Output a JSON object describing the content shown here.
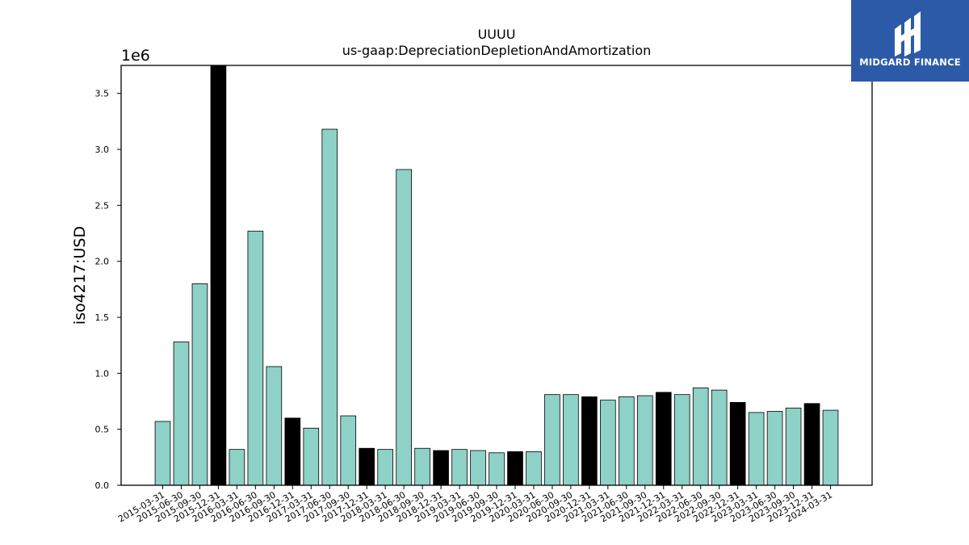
{
  "chart_data": {
    "type": "bar",
    "title": "UUUU",
    "subtitle": "us-gaap:DepreciationDepletionAndAmortization",
    "ylabel": "iso4217:USD",
    "xlabel": "",
    "y_scale_label": "1e6",
    "ylim": [
      0,
      3.75
    ],
    "y_ticks": [
      "0.0",
      "0.5",
      "1.0",
      "1.5",
      "2.0",
      "2.5",
      "3.0",
      "3.5"
    ],
    "y_tick_values": [
      0,
      0.5,
      1.0,
      1.5,
      2.0,
      2.5,
      3.0,
      3.5
    ],
    "colors": {
      "quarter": "#8ed1c6",
      "year_end": "#000000",
      "edge": "#000000"
    },
    "categories": [
      "2015-03-31",
      "2015-06-30",
      "2015-09-30",
      "2015-12-31",
      "2016-03-31",
      "2016-06-30",
      "2016-09-30",
      "2016-12-31",
      "2017-03-31",
      "2017-06-30",
      "2017-09-30",
      "2017-12-31",
      "2018-03-31",
      "2018-06-30",
      "2018-09-30",
      "2018-12-31",
      "2019-03-31",
      "2019-06-30",
      "2019-09-30",
      "2019-12-31",
      "2020-03-31",
      "2020-06-30",
      "2020-09-30",
      "2020-12-31",
      "2021-03-31",
      "2021-06-30",
      "2021-09-30",
      "2021-12-31",
      "2022-03-31",
      "2022-06-30",
      "2022-09-30",
      "2022-12-31",
      "2023-03-31",
      "2023-06-30",
      "2023-09-30",
      "2023-12-31",
      "2024-03-31"
    ],
    "values": [
      0.57,
      1.28,
      1.8,
      3.76,
      0.32,
      2.27,
      1.06,
      0.6,
      0.51,
      3.18,
      0.62,
      0.33,
      0.32,
      2.82,
      0.33,
      0.31,
      0.32,
      0.31,
      0.29,
      0.3,
      0.3,
      0.81,
      0.81,
      0.79,
      0.76,
      0.79,
      0.8,
      0.83,
      0.81,
      0.87,
      0.85,
      0.74,
      0.65,
      0.66,
      0.69,
      0.73,
      0.67
    ],
    "highlight": [
      false,
      false,
      false,
      true,
      false,
      false,
      false,
      true,
      false,
      false,
      false,
      true,
      false,
      false,
      false,
      true,
      false,
      false,
      false,
      true,
      false,
      false,
      false,
      true,
      false,
      false,
      false,
      true,
      false,
      false,
      false,
      true,
      false,
      false,
      false,
      true,
      false
    ],
    "grid": false,
    "legend": "none"
  },
  "logo": {
    "text": "MIDGARD FINANCE",
    "color": "#2c5aa8"
  }
}
